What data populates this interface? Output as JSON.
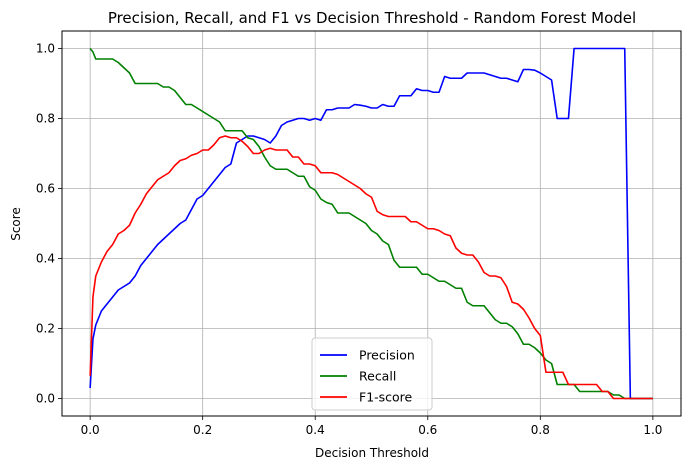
{
  "chart_data": {
    "type": "line",
    "title": "Precision, Recall, and F1 vs Decision Threshold - Random Forest Model",
    "xlabel": "Decision Threshold",
    "ylabel": "Score",
    "xlim": [
      -0.05,
      1.05
    ],
    "ylim": [
      -0.05,
      1.05
    ],
    "xticks": [
      0.0,
      0.2,
      0.4,
      0.6,
      0.8,
      1.0
    ],
    "xtick_labels": [
      "0.0",
      "0.2",
      "0.4",
      "0.6",
      "0.8",
      "1.0"
    ],
    "yticks": [
      0.0,
      0.2,
      0.4,
      0.6,
      0.8,
      1.0
    ],
    "ytick_labels": [
      "0.0",
      "0.2",
      "0.4",
      "0.6",
      "0.8",
      "1.0"
    ],
    "grid": true,
    "legend_position": "lower-center",
    "series": [
      {
        "name": "Precision",
        "color": "#0000ff",
        "x": [
          0.0,
          0.005,
          0.01,
          0.02,
          0.03,
          0.04,
          0.05,
          0.06,
          0.07,
          0.08,
          0.09,
          0.1,
          0.12,
          0.14,
          0.16,
          0.17,
          0.18,
          0.19,
          0.2,
          0.21,
          0.22,
          0.23,
          0.24,
          0.25,
          0.26,
          0.27,
          0.28,
          0.29,
          0.3,
          0.31,
          0.32,
          0.33,
          0.34,
          0.35,
          0.36,
          0.37,
          0.38,
          0.39,
          0.4,
          0.41,
          0.42,
          0.43,
          0.44,
          0.45,
          0.46,
          0.47,
          0.48,
          0.49,
          0.5,
          0.51,
          0.52,
          0.53,
          0.54,
          0.55,
          0.56,
          0.57,
          0.58,
          0.59,
          0.6,
          0.61,
          0.62,
          0.63,
          0.64,
          0.65,
          0.66,
          0.67,
          0.68,
          0.69,
          0.7,
          0.71,
          0.72,
          0.73,
          0.74,
          0.75,
          0.76,
          0.77,
          0.78,
          0.79,
          0.8,
          0.81,
          0.82,
          0.83,
          0.84,
          0.85,
          0.86,
          0.87,
          0.88,
          0.89,
          0.9,
          0.91,
          0.92,
          0.93,
          0.94,
          0.95,
          0.96,
          0.97,
          0.98,
          0.99,
          1.0
        ],
        "values": [
          0.03,
          0.17,
          0.21,
          0.25,
          0.27,
          0.29,
          0.31,
          0.32,
          0.33,
          0.35,
          0.38,
          0.4,
          0.44,
          0.47,
          0.5,
          0.51,
          0.54,
          0.57,
          0.58,
          0.6,
          0.62,
          0.64,
          0.66,
          0.67,
          0.73,
          0.74,
          0.75,
          0.75,
          0.745,
          0.74,
          0.73,
          0.75,
          0.78,
          0.79,
          0.795,
          0.8,
          0.8,
          0.795,
          0.8,
          0.795,
          0.825,
          0.825,
          0.83,
          0.83,
          0.83,
          0.84,
          0.838,
          0.835,
          0.83,
          0.83,
          0.84,
          0.835,
          0.835,
          0.865,
          0.865,
          0.865,
          0.885,
          0.88,
          0.88,
          0.875,
          0.875,
          0.92,
          0.915,
          0.915,
          0.915,
          0.93,
          0.93,
          0.93,
          0.93,
          0.925,
          0.92,
          0.915,
          0.915,
          0.91,
          0.905,
          0.94,
          0.94,
          0.938,
          0.93,
          0.92,
          0.91,
          0.8,
          0.8,
          0.8,
          1.0,
          1.0,
          1.0,
          1.0,
          1.0,
          1.0,
          1.0,
          1.0,
          1.0,
          1.0,
          0.0,
          0.0,
          0.0,
          0.0,
          0.0
        ]
      },
      {
        "name": "Recall",
        "color": "#008000",
        "x": [
          0.0,
          0.005,
          0.01,
          0.02,
          0.03,
          0.04,
          0.05,
          0.06,
          0.07,
          0.08,
          0.09,
          0.1,
          0.11,
          0.12,
          0.13,
          0.14,
          0.15,
          0.16,
          0.17,
          0.18,
          0.19,
          0.2,
          0.21,
          0.22,
          0.23,
          0.24,
          0.25,
          0.26,
          0.27,
          0.28,
          0.29,
          0.3,
          0.31,
          0.32,
          0.33,
          0.34,
          0.35,
          0.36,
          0.37,
          0.38,
          0.39,
          0.4,
          0.41,
          0.42,
          0.43,
          0.44,
          0.45,
          0.46,
          0.47,
          0.48,
          0.49,
          0.5,
          0.51,
          0.52,
          0.53,
          0.54,
          0.55,
          0.56,
          0.57,
          0.58,
          0.59,
          0.6,
          0.61,
          0.62,
          0.63,
          0.64,
          0.65,
          0.66,
          0.67,
          0.68,
          0.69,
          0.7,
          0.71,
          0.72,
          0.73,
          0.74,
          0.75,
          0.76,
          0.77,
          0.78,
          0.79,
          0.8,
          0.81,
          0.82,
          0.83,
          0.84,
          0.85,
          0.86,
          0.87,
          0.88,
          0.89,
          0.9,
          0.91,
          0.92,
          0.93,
          0.94,
          0.95,
          0.96,
          0.97,
          0.98,
          0.99,
          1.0
        ],
        "values": [
          1.0,
          0.99,
          0.97,
          0.97,
          0.97,
          0.97,
          0.96,
          0.945,
          0.93,
          0.9,
          0.9,
          0.9,
          0.9,
          0.9,
          0.89,
          0.89,
          0.88,
          0.86,
          0.84,
          0.84,
          0.83,
          0.82,
          0.81,
          0.8,
          0.79,
          0.765,
          0.765,
          0.765,
          0.765,
          0.745,
          0.74,
          0.72,
          0.69,
          0.665,
          0.655,
          0.655,
          0.655,
          0.645,
          0.635,
          0.635,
          0.605,
          0.595,
          0.57,
          0.56,
          0.555,
          0.53,
          0.53,
          0.53,
          0.52,
          0.51,
          0.5,
          0.48,
          0.47,
          0.45,
          0.44,
          0.395,
          0.375,
          0.375,
          0.375,
          0.375,
          0.355,
          0.355,
          0.345,
          0.335,
          0.335,
          0.325,
          0.315,
          0.315,
          0.275,
          0.265,
          0.265,
          0.265,
          0.245,
          0.225,
          0.215,
          0.215,
          0.205,
          0.185,
          0.155,
          0.155,
          0.145,
          0.13,
          0.11,
          0.1,
          0.04,
          0.04,
          0.04,
          0.04,
          0.02,
          0.02,
          0.02,
          0.02,
          0.02,
          0.02,
          0.01,
          0.01,
          0.0,
          0.0,
          0.0,
          0.0,
          0.0,
          0.0
        ]
      },
      {
        "name": "F1-score",
        "color": "#ff0000",
        "x": [
          0.0,
          0.005,
          0.01,
          0.02,
          0.03,
          0.04,
          0.05,
          0.06,
          0.07,
          0.08,
          0.09,
          0.1,
          0.11,
          0.12,
          0.13,
          0.14,
          0.15,
          0.16,
          0.17,
          0.18,
          0.19,
          0.2,
          0.21,
          0.22,
          0.23,
          0.24,
          0.25,
          0.26,
          0.27,
          0.28,
          0.29,
          0.3,
          0.31,
          0.32,
          0.33,
          0.34,
          0.35,
          0.36,
          0.37,
          0.38,
          0.39,
          0.4,
          0.41,
          0.42,
          0.43,
          0.44,
          0.45,
          0.46,
          0.47,
          0.48,
          0.49,
          0.5,
          0.51,
          0.52,
          0.53,
          0.54,
          0.55,
          0.56,
          0.57,
          0.58,
          0.59,
          0.6,
          0.61,
          0.62,
          0.63,
          0.64,
          0.65,
          0.66,
          0.67,
          0.68,
          0.69,
          0.7,
          0.71,
          0.72,
          0.73,
          0.74,
          0.75,
          0.76,
          0.77,
          0.78,
          0.79,
          0.8,
          0.81,
          0.82,
          0.83,
          0.84,
          0.85,
          0.86,
          0.87,
          0.88,
          0.89,
          0.9,
          0.91,
          0.92,
          0.93,
          0.94,
          0.95,
          0.96,
          0.97,
          0.98,
          0.99,
          1.0
        ],
        "values": [
          0.065,
          0.29,
          0.35,
          0.39,
          0.42,
          0.44,
          0.47,
          0.48,
          0.495,
          0.53,
          0.555,
          0.585,
          0.605,
          0.625,
          0.635,
          0.645,
          0.665,
          0.68,
          0.685,
          0.695,
          0.7,
          0.71,
          0.71,
          0.725,
          0.745,
          0.75,
          0.745,
          0.745,
          0.735,
          0.72,
          0.7,
          0.7,
          0.71,
          0.715,
          0.71,
          0.71,
          0.71,
          0.69,
          0.69,
          0.67,
          0.67,
          0.665,
          0.645,
          0.645,
          0.645,
          0.64,
          0.63,
          0.62,
          0.61,
          0.6,
          0.585,
          0.575,
          0.535,
          0.525,
          0.52,
          0.52,
          0.52,
          0.52,
          0.505,
          0.505,
          0.495,
          0.485,
          0.485,
          0.48,
          0.47,
          0.465,
          0.43,
          0.415,
          0.41,
          0.41,
          0.39,
          0.36,
          0.35,
          0.35,
          0.345,
          0.32,
          0.275,
          0.27,
          0.255,
          0.23,
          0.2,
          0.18,
          0.075,
          0.075,
          0.075,
          0.075,
          0.04,
          0.04,
          0.04,
          0.04,
          0.04,
          0.04,
          0.02,
          0.02,
          0.0,
          0.0,
          0.0,
          0.0,
          0.0,
          0.0,
          0.0,
          0.0
        ]
      }
    ]
  }
}
